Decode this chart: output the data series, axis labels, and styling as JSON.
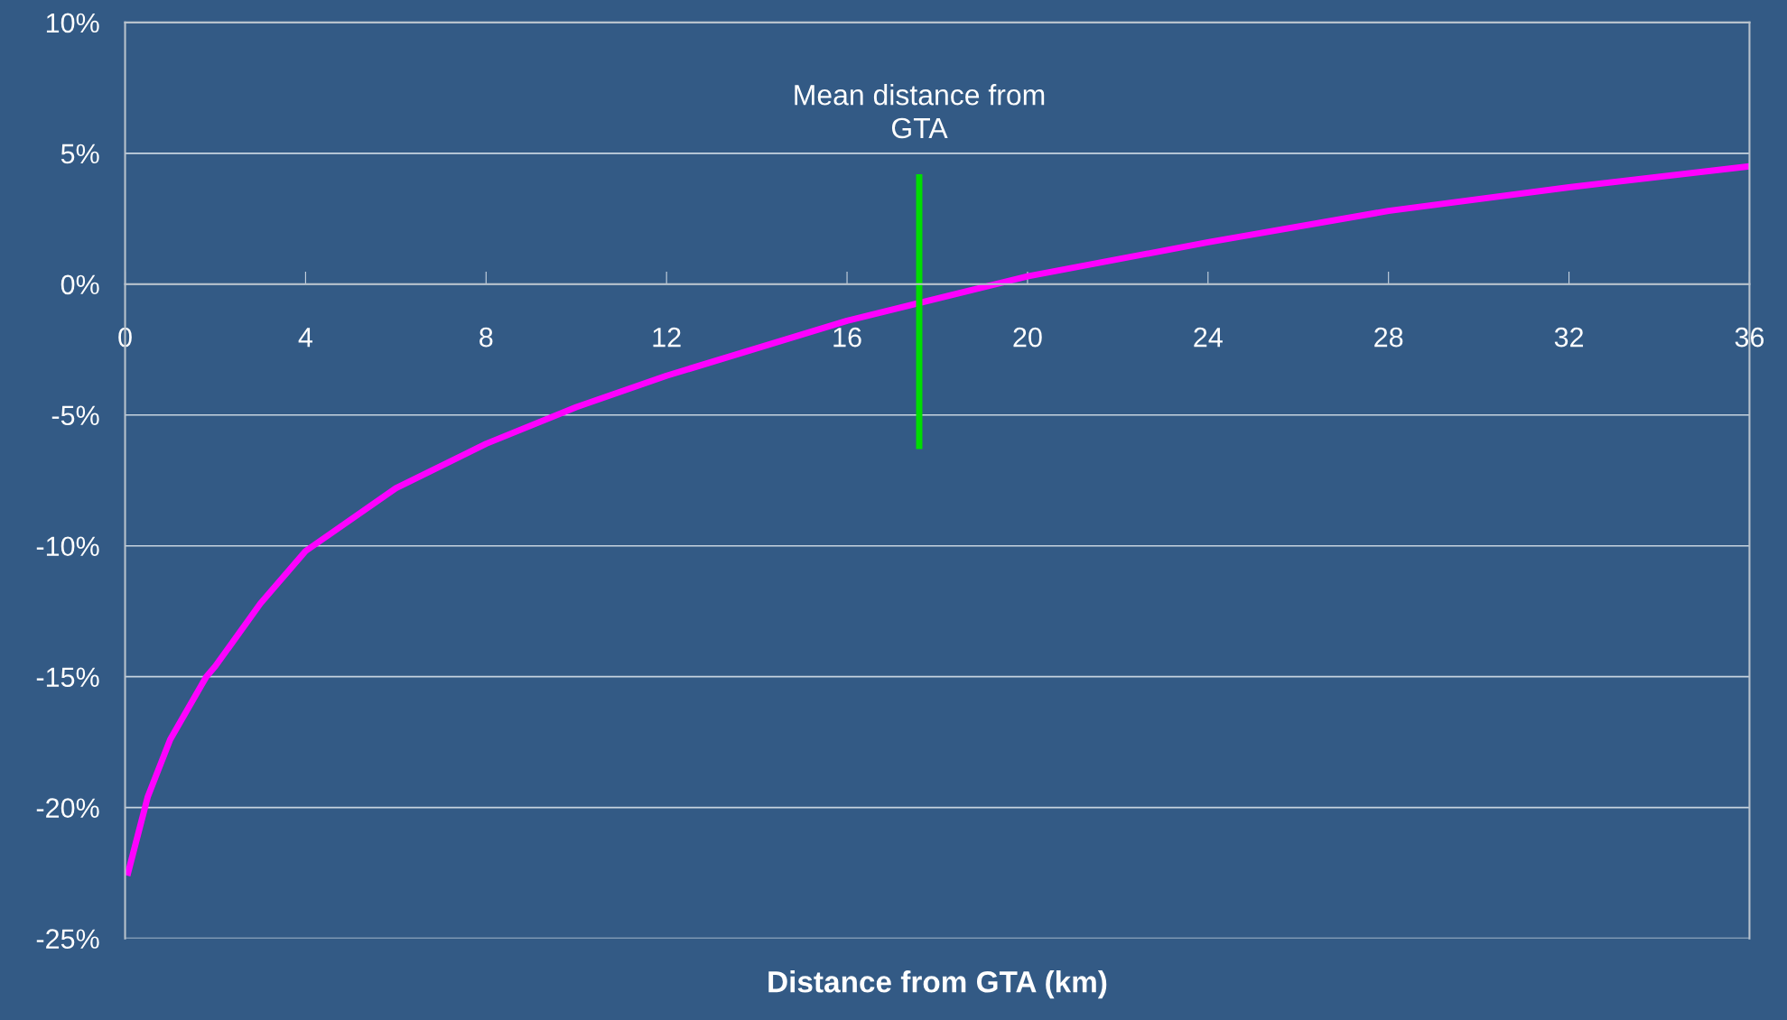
{
  "chart_data": {
    "type": "line",
    "xlabel": "Distance from GTA (km)",
    "x": [
      0.05,
      0.5,
      1,
      1.8,
      2,
      3,
      4,
      6,
      8,
      10,
      12,
      16,
      20,
      24,
      28,
      32,
      36
    ],
    "series": [
      {
        "color": "#ff00ff",
        "values": [
          -22.6,
          -19.6,
          -17.4,
          -15.0,
          -14.6,
          -12.2,
          -10.2,
          -7.8,
          -6.1,
          -4.7,
          -3.5,
          -1.4,
          0.3,
          1.6,
          2.8,
          3.7,
          4.5
        ]
      },
      {
        "color": "#00dd00",
        "x": [
          17.6,
          17.6
        ],
        "values": [
          -6.3,
          4.2
        ]
      }
    ],
    "annotations": [
      "Mean distance from\nGTA"
    ],
    "xlim": [
      0,
      36
    ],
    "xticks": [
      0,
      4,
      8,
      12,
      16,
      20,
      24,
      28,
      32,
      36
    ],
    "ylim": [
      -25,
      10
    ],
    "yticks": [
      {
        "value": -25,
        "label": "-25%"
      },
      {
        "value": -20,
        "label": "-20%"
      },
      {
        "value": -15,
        "label": "-15%"
      },
      {
        "value": -10,
        "label": "-10%"
      },
      {
        "value": -5,
        "label": "-5%"
      },
      {
        "value": 0,
        "label": "0%"
      },
      {
        "value": 5,
        "label": "5%"
      },
      {
        "value": 10,
        "label": "10%"
      }
    ],
    "grid": "y",
    "legend": false,
    "marker": "none",
    "line_style": "solid"
  }
}
